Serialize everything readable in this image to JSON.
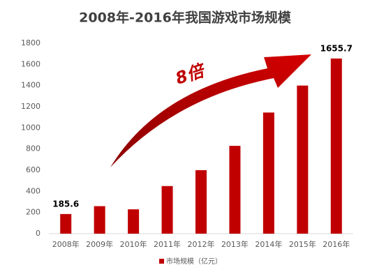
{
  "chart_data": {
    "type": "bar",
    "title": "2008年-2016年我国游戏市场规模",
    "annotation": "8倍",
    "categories": [
      "2008年",
      "2009年",
      "2010年",
      "2011年",
      "2012年",
      "2013年",
      "2014年",
      "2015年",
      "2016年"
    ],
    "series": [
      {
        "name": "市场规模（亿元）",
        "color": "#c00000",
        "values": [
          185.6,
          260,
          230,
          450,
          600,
          830,
          1145,
          1400,
          1655.7
        ],
        "value_labels": [
          "185.6",
          null,
          null,
          null,
          null,
          null,
          null,
          null,
          "1655.7"
        ]
      }
    ],
    "ylim": [
      0,
      1800
    ],
    "yticks": [
      0,
      200,
      400,
      600,
      800,
      1000,
      1200,
      1400,
      1600,
      1800
    ],
    "grid": false,
    "legend": "bottom"
  }
}
